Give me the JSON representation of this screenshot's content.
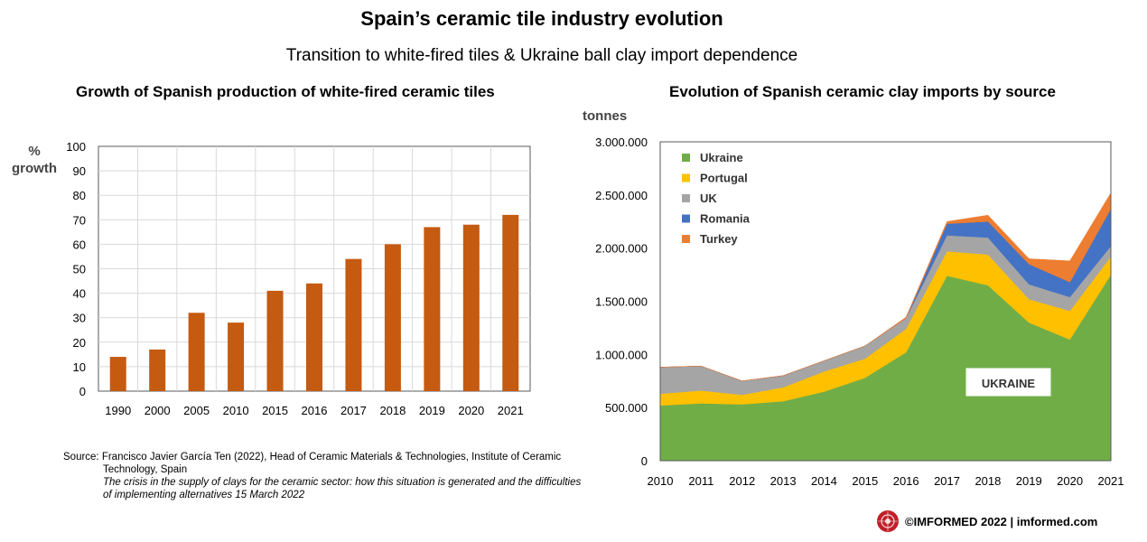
{
  "header": {
    "title": "Spain’s ceramic tile industry evolution",
    "subtitle": "Transition to white-fired tiles & Ukraine ball clay import dependence"
  },
  "chart_data": [
    {
      "type": "bar",
      "title": "Growth of Spanish production of white-fired ceramic tiles",
      "ylabel": "% growth",
      "xlabel": "",
      "categories": [
        "1990",
        "2000",
        "2005",
        "2010",
        "2015",
        "2016",
        "2017",
        "2018",
        "2019",
        "2020",
        "2021"
      ],
      "values": [
        14,
        17,
        32,
        28,
        41,
        44,
        54,
        60,
        67,
        68,
        72
      ],
      "ylim": [
        0,
        100
      ],
      "yticks": [
        "0",
        "10",
        "20",
        "30",
        "40",
        "50",
        "60",
        "70",
        "80",
        "90",
        "100"
      ],
      "grid": true,
      "color": "#c55a11"
    },
    {
      "type": "area",
      "stacked": true,
      "title": "Evolution of Spanish ceramic clay imports by source",
      "ylabel": "tonnes",
      "xlabel": "",
      "categories": [
        "2010",
        "2011",
        "2012",
        "2013",
        "2014",
        "2015",
        "2016",
        "2017",
        "2018",
        "2019",
        "2020",
        "2021"
      ],
      "ylim": [
        0,
        3000000
      ],
      "yticks": [
        "0",
        "500.000",
        "1.000.000",
        "1.500.000",
        "2.000.000",
        "2.500.000",
        "3.000.000"
      ],
      "legend_position": "top-left",
      "annotation": "UKRAINE",
      "series": [
        {
          "name": "Ukraine",
          "color": "#70ad47",
          "values": [
            520000,
            540000,
            530000,
            560000,
            650000,
            780000,
            1020000,
            1740000,
            1650000,
            1300000,
            1140000,
            1750000
          ]
        },
        {
          "name": "Portugal",
          "color": "#ffc000",
          "values": [
            110000,
            120000,
            90000,
            130000,
            190000,
            180000,
            220000,
            230000,
            290000,
            220000,
            270000,
            170000
          ]
        },
        {
          "name": "UK",
          "color": "#a5a5a5",
          "values": [
            250000,
            230000,
            130000,
            110000,
            100000,
            120000,
            100000,
            150000,
            160000,
            140000,
            130000,
            100000
          ]
        },
        {
          "name": "Romania",
          "color": "#4472c4",
          "values": [
            0,
            0,
            0,
            0,
            0,
            0,
            0,
            110000,
            150000,
            190000,
            140000,
            350000
          ]
        },
        {
          "name": "Turkey",
          "color": "#ed7d31",
          "values": [
            0,
            0,
            0,
            0,
            0,
            0,
            10000,
            20000,
            60000,
            50000,
            200000,
            150000
          ]
        }
      ]
    }
  ],
  "source": {
    "line1": "Source: Francisco Javier García Ten (2022), Head of Ceramic Materials & Technologies, Institute of Ceramic",
    "line2": "Technology, Spain",
    "line3": "The crisis in the supply of clays for the ceramic sector: how this situation is generated and the difficulties",
    "line4": "of implementing alternatives 15 March 2022"
  },
  "footer": {
    "text": "©IMFORMED 2022  | imformed.com",
    "logo_icon": "imformed-logo-icon",
    "logo_color": "#c0202a"
  }
}
